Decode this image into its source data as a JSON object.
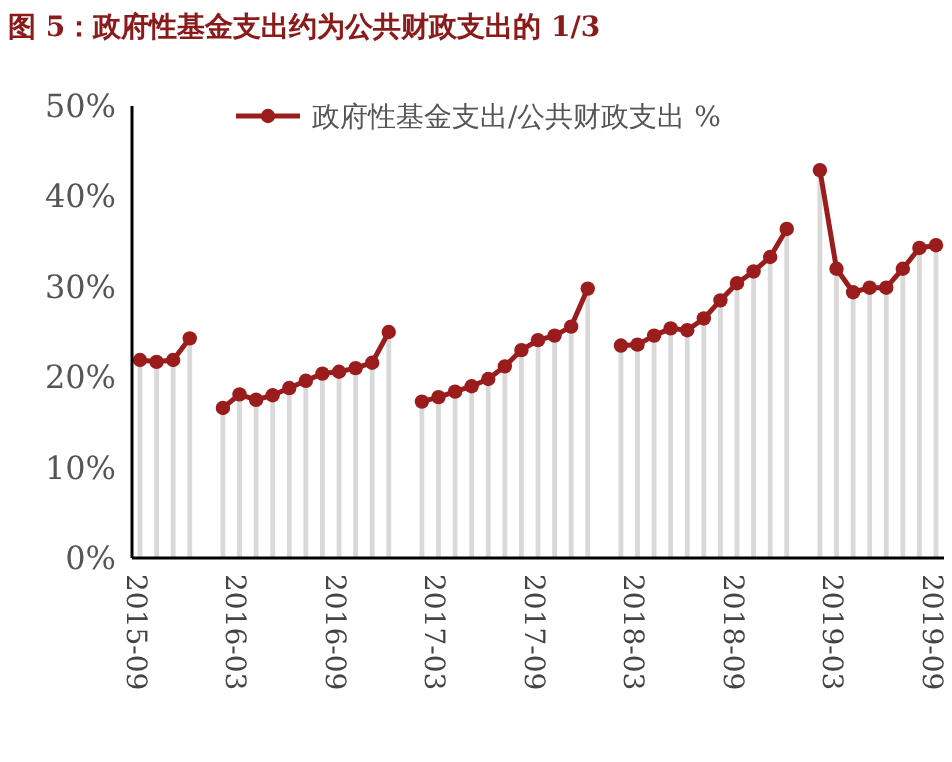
{
  "chart_data": {
    "type": "line",
    "title": "图 5：政府性基金支出约为公共财政支出的 1/3",
    "categories": [
      "2015-09",
      null,
      null,
      null,
      null,
      null,
      "2016-03",
      null,
      null,
      null,
      null,
      null,
      "2016-09",
      null,
      null,
      null,
      null,
      null,
      "2017-03",
      null,
      null,
      null,
      null,
      null,
      "2017-09",
      null,
      null,
      null,
      null,
      null,
      "2018-03",
      null,
      null,
      null,
      null,
      null,
      "2018-09",
      null,
      null,
      null,
      null,
      null,
      "2019-03",
      null,
      null,
      null,
      null,
      null,
      "2019-09"
    ],
    "series": [
      {
        "type": "bar",
        "color": "#d9d9d9",
        "values": [
          21.9,
          21.7,
          21.9,
          24.3,
          null,
          16.6,
          18.1,
          17.5,
          18.0,
          18.8,
          19.6,
          20.4,
          20.6,
          21.0,
          21.6,
          25.0,
          null,
          17.3,
          17.8,
          18.4,
          19.0,
          19.8,
          21.2,
          23.0,
          24.1,
          24.6,
          25.6,
          29.8,
          null,
          23.5,
          23.6,
          24.6,
          25.4,
          25.2,
          26.5,
          28.5,
          30.4,
          31.7,
          33.3,
          36.4,
          null,
          42.9,
          32.0,
          29.4,
          29.9,
          29.9,
          32.0,
          34.3,
          34.6
        ]
      },
      {
        "name": "政府性基金支出/公共财政支出 %",
        "color": "#9b1c1c",
        "values": [
          21.9,
          21.7,
          21.9,
          24.3,
          null,
          16.6,
          18.1,
          17.5,
          18.0,
          18.8,
          19.6,
          20.4,
          20.6,
          21.0,
          21.6,
          25.0,
          null,
          17.3,
          17.8,
          18.4,
          19.0,
          19.8,
          21.2,
          23.0,
          24.1,
          24.6,
          25.6,
          29.8,
          null,
          23.5,
          23.6,
          24.6,
          25.4,
          25.2,
          26.5,
          28.5,
          30.4,
          31.7,
          33.3,
          36.4,
          null,
          42.9,
          32.0,
          29.4,
          29.9,
          29.9,
          32.0,
          34.3,
          34.6
        ]
      }
    ],
    "ylim": [
      0,
      50
    ],
    "yticks": [
      {
        "value": 0,
        "label": "0%"
      },
      {
        "value": 10,
        "label": "10%"
      },
      {
        "value": 20,
        "label": "20%"
      },
      {
        "value": 30,
        "label": "30%"
      },
      {
        "value": 40,
        "label": "40%"
      },
      {
        "value": 50,
        "label": "50%"
      }
    ],
    "legend": "top",
    "marker": "circle",
    "line_style": "solid",
    "grid": false
  }
}
